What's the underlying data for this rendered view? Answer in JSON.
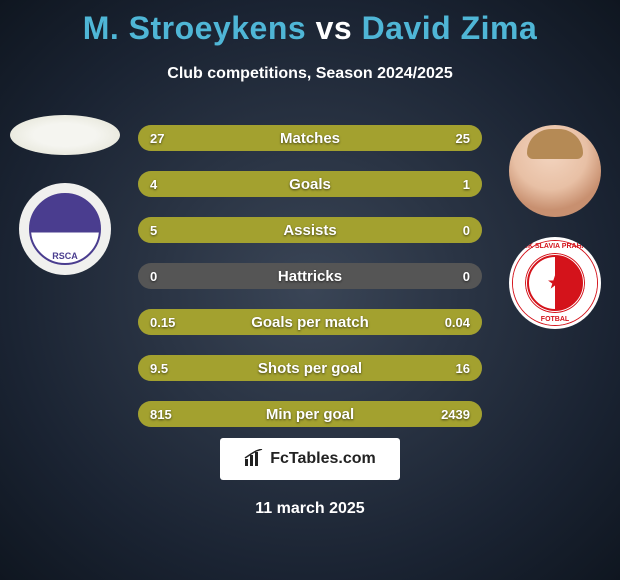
{
  "title": {
    "player1": "M. Stroeykens",
    "vs": "vs",
    "player2": "David Zima",
    "color_p1": "#4fb6d6",
    "color_vs": "#ffffff",
    "color_p2": "#4fb6d6",
    "fontsize": 32
  },
  "subtitle": "Club competitions, Season 2024/2025",
  "date": "11 march 2025",
  "footer_brand": "FcTables.com",
  "left_side": {
    "player_avatar": "ellipse-placeholder",
    "club": "RSC Anderlecht",
    "club_colors": {
      "primary": "#4a3d8f",
      "secondary": "#ffffff"
    }
  },
  "right_side": {
    "player_avatar": "young-male-blond",
    "club": "SK Slavia Praha",
    "club_colors": {
      "primary": "#d4131b",
      "secondary": "#ffffff"
    }
  },
  "bar_style": {
    "height": 26,
    "gap": 20,
    "border_radius": 13,
    "track_color": "#555555",
    "left_color": "#a3a12f",
    "right_color": "#a3a12f",
    "label_fontsize": 15,
    "value_fontsize": 13,
    "text_color": "#ffffff"
  },
  "stats": [
    {
      "label": "Matches",
      "left_val": "27",
      "right_val": "25",
      "left_pct": 52,
      "right_pct": 48
    },
    {
      "label": "Goals",
      "left_val": "4",
      "right_val": "1",
      "left_pct": 80,
      "right_pct": 20
    },
    {
      "label": "Assists",
      "left_val": "5",
      "right_val": "0",
      "left_pct": 100,
      "right_pct": 0
    },
    {
      "label": "Hattricks",
      "left_val": "0",
      "right_val": "0",
      "left_pct": 0,
      "right_pct": 0
    },
    {
      "label": "Goals per match",
      "left_val": "0.15",
      "right_val": "0.04",
      "left_pct": 79,
      "right_pct": 21
    },
    {
      "label": "Shots per goal",
      "left_val": "9.5",
      "right_val": "16",
      "left_pct": 37,
      "right_pct": 63
    },
    {
      "label": "Min per goal",
      "left_val": "815",
      "right_val": "2439",
      "left_pct": 25,
      "right_pct": 75
    }
  ]
}
